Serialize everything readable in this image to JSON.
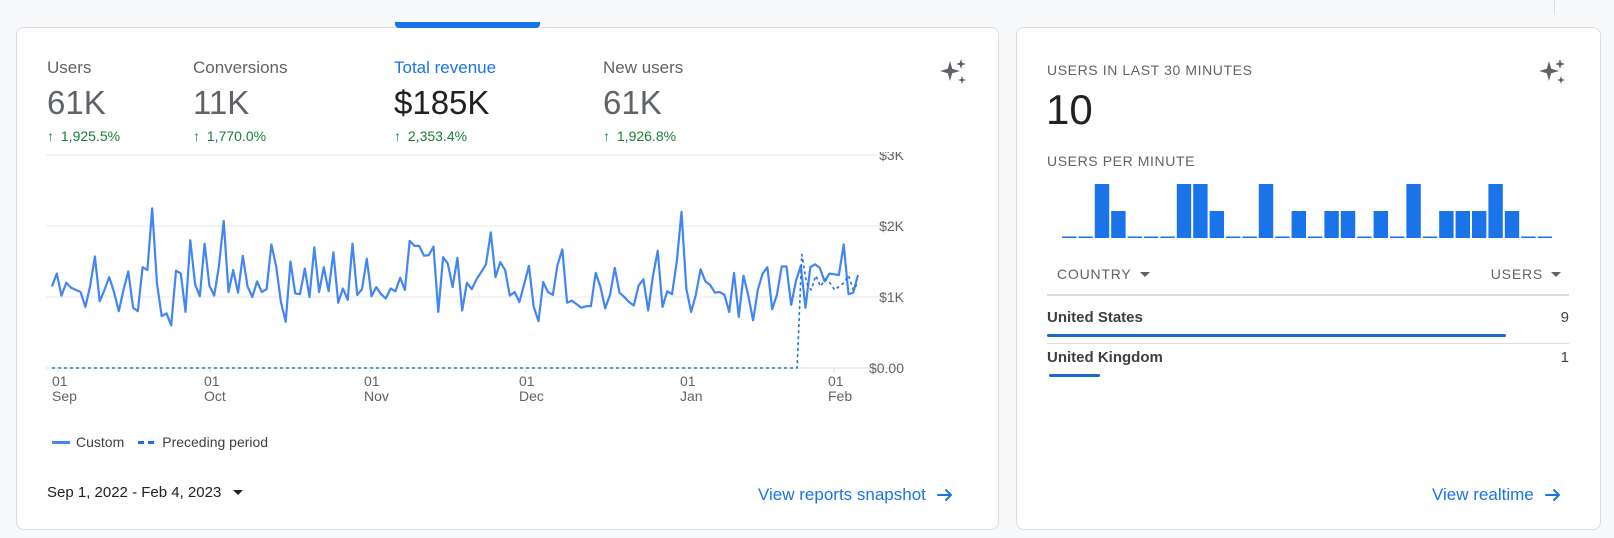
{
  "metrics": [
    {
      "label": "Users",
      "value": "61K",
      "delta": "1,925.5%",
      "active": false
    },
    {
      "label": "Conversions",
      "value": "11K",
      "delta": "1,770.0%",
      "active": false
    },
    {
      "label": "Total revenue",
      "value": "$185K",
      "delta": "2,353.4%",
      "active": true
    },
    {
      "label": "New users",
      "value": "61K",
      "delta": "1,926.8%",
      "active": false
    }
  ],
  "icons": {
    "delta": "arrow-up-icon",
    "insights": "sparkle-icon",
    "link": "arrow-right-icon",
    "dropdown": "caret-down-icon"
  },
  "colors": {
    "accent": "#1a73e8",
    "line": "#4285f4",
    "positive": "#188038",
    "bar": "#1a73e8"
  },
  "chart_data": {
    "type": "line",
    "y_tick_labels": [
      "$3K",
      "$2K",
      "$1K",
      "$0.00"
    ],
    "ylim": [
      0,
      3000
    ],
    "x_tick_labels": [
      {
        "day": "01",
        "month": "Sep"
      },
      {
        "day": "01",
        "month": "Oct"
      },
      {
        "day": "01",
        "month": "Nov"
      },
      {
        "day": "01",
        "month": "Dec"
      },
      {
        "day": "01",
        "month": "Jan"
      },
      {
        "day": "01",
        "month": "Feb"
      }
    ],
    "grid": true,
    "legend_position": "bottom-left",
    "series": [
      {
        "name": "Custom",
        "style": "solid",
        "values": [
          1150,
          1330,
          1020,
          1200,
          1130,
          1100,
          1070,
          860,
          1160,
          1570,
          940,
          1100,
          1280,
          1070,
          800,
          1100,
          1360,
          850,
          800,
          1420,
          1380,
          2250,
          1200,
          730,
          770,
          600,
          1370,
          1330,
          790,
          1800,
          1180,
          1010,
          1750,
          1160,
          1020,
          1430,
          2070,
          1070,
          1380,
          1060,
          1580,
          1150,
          1000,
          1220,
          1070,
          1110,
          1740,
          1430,
          930,
          650,
          1500,
          1050,
          1040,
          1400,
          1000,
          1700,
          1070,
          1420,
          1080,
          1630,
          920,
          1120,
          960,
          1750,
          1030,
          1110,
          1540,
          1010,
          1140,
          1040,
          980,
          1120,
          1080,
          1270,
          1100,
          1790,
          1720,
          1720,
          1580,
          1590,
          1710,
          790,
          1560,
          1470,
          1140,
          1550,
          810,
          1200,
          1110,
          1250,
          1350,
          1460,
          1910,
          1280,
          1490,
          1380,
          1020,
          1070,
          930,
          1180,
          1440,
          860,
          660,
          1210,
          1070,
          1030,
          1450,
          1670,
          920,
          950,
          900,
          850,
          870,
          870,
          1340,
          1140,
          840,
          1030,
          1410,
          1060,
          1000,
          930,
          880,
          1160,
          1250,
          810,
          1290,
          1650,
          860,
          1080,
          1040,
          1500,
          2200,
          1120,
          790,
          1030,
          1390,
          1220,
          1170,
          1060,
          1070,
          1030,
          790,
          1340,
          720,
          1300,
          1020,
          670,
          1100,
          1330,
          1420,
          830,
          1030,
          1430,
          1430,
          890,
          1230,
          1440,
          850,
          1420,
          1460,
          1410,
          1220,
          1330,
          1320,
          1310,
          1740,
          1040,
          1060,
          1310
        ]
      },
      {
        "name": "Preceding period",
        "style": "dashed",
        "values": [
          0,
          0,
          0,
          0,
          0,
          0,
          0,
          0,
          0,
          0,
          0,
          0,
          0,
          0,
          0,
          0,
          0,
          0,
          0,
          0,
          0,
          0,
          0,
          0,
          0,
          0,
          0,
          0,
          0,
          0,
          0,
          0,
          0,
          0,
          0,
          0,
          0,
          0,
          0,
          0,
          0,
          0,
          0,
          0,
          0,
          0,
          0,
          0,
          0,
          0,
          0,
          0,
          0,
          0,
          0,
          0,
          0,
          0,
          0,
          0,
          0,
          0,
          0,
          0,
          0,
          0,
          0,
          0,
          0,
          0,
          0,
          0,
          0,
          0,
          0,
          0,
          0,
          0,
          0,
          0,
          0,
          0,
          0,
          0,
          0,
          0,
          0,
          0,
          0,
          0,
          0,
          0,
          0,
          0,
          0,
          0,
          0,
          0,
          0,
          0,
          0,
          0,
          0,
          0,
          0,
          0,
          0,
          0,
          0,
          0,
          0,
          0,
          0,
          0,
          0,
          0,
          0,
          0,
          0,
          0,
          0,
          0,
          0,
          0,
          0,
          0,
          0,
          0,
          0,
          0,
          0,
          0,
          0,
          0,
          0,
          0,
          0,
          0,
          0,
          0,
          0,
          0,
          0,
          0,
          0,
          0,
          0,
          0,
          0,
          0,
          0,
          0,
          0,
          0,
          0,
          0,
          0,
          0,
          0,
          0,
          1600,
          1200,
          1100,
          1300,
          1150,
          1250,
          1200,
          1100,
          1150,
          1200,
          1300,
          1100,
          1200
        ]
      }
    ]
  },
  "legend": {
    "custom": "Custom",
    "preceding": "Preceding period"
  },
  "date_range": "Sep 1, 2022 - Feb 4, 2023",
  "view_reports_link": "View reports snapshot",
  "realtime": {
    "title": "USERS IN LAST 30 MINUTES",
    "value": "10",
    "sub_title": "USERS PER MINUTE",
    "per_minute": [
      0,
      0,
      2,
      1,
      0,
      0,
      0,
      2,
      2,
      1,
      0,
      0,
      2,
      0,
      1,
      0,
      1,
      1,
      0,
      1,
      0,
      2,
      0,
      1,
      1,
      1,
      2,
      1,
      0,
      0
    ],
    "col_country": "COUNTRY",
    "col_users": "USERS",
    "rows": [
      {
        "country": "United States",
        "users": "9",
        "fraction": 0.9
      },
      {
        "country": "United Kingdom",
        "users": "1",
        "fraction": 0.1
      }
    ],
    "link": "View realtime"
  }
}
